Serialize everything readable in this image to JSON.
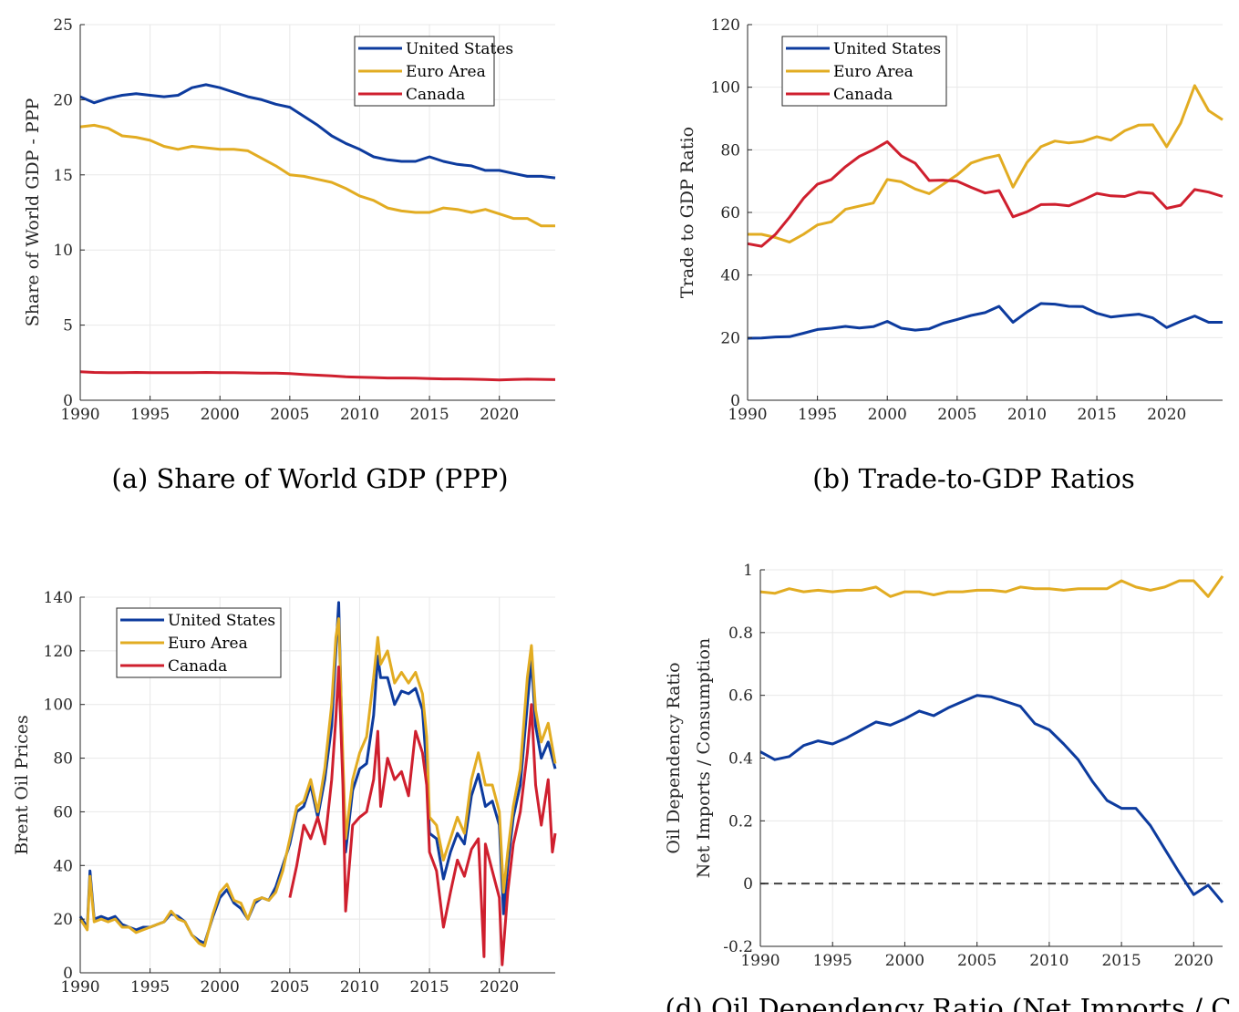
{
  "colors": {
    "us": "#0d3b9e",
    "ea": "#e2ac22",
    "ca": "#cf1f2e",
    "grid": "#e8e8e8",
    "axis": "#262626"
  },
  "chart_data": [
    {
      "id": "a",
      "type": "line",
      "caption": "(a) Share of World GDP (PPP)",
      "xlabel": "",
      "ylabel": "Share of World GDP - PPP",
      "xlim": [
        1990,
        2024
      ],
      "ylim": [
        0,
        25
      ],
      "xticks": [
        "1990",
        "1995",
        "2000",
        "2005",
        "2010",
        "2015",
        "2020"
      ],
      "yticks": [
        "0",
        "5",
        "10",
        "15",
        "20",
        "25"
      ],
      "legend": "top-right",
      "grid": true,
      "x": [
        1990,
        1991,
        1992,
        1993,
        1994,
        1995,
        1996,
        1997,
        1998,
        1999,
        2000,
        2001,
        2002,
        2003,
        2004,
        2005,
        2006,
        2007,
        2008,
        2009,
        2010,
        2011,
        2012,
        2013,
        2014,
        2015,
        2016,
        2017,
        2018,
        2019,
        2020,
        2021,
        2022,
        2023,
        2024
      ],
      "series": [
        {
          "name": "United States",
          "color": "us",
          "values": [
            20.2,
            19.8,
            20.1,
            20.3,
            20.4,
            20.3,
            20.2,
            20.3,
            20.8,
            21.0,
            20.8,
            20.5,
            20.2,
            20.0,
            19.7,
            19.5,
            18.9,
            18.3,
            17.6,
            17.1,
            16.7,
            16.2,
            16.0,
            15.9,
            15.9,
            16.2,
            15.9,
            15.7,
            15.6,
            15.3,
            15.3,
            15.1,
            14.9,
            14.9,
            14.8
          ]
        },
        {
          "name": "Euro Area",
          "color": "ea",
          "values": [
            18.2,
            18.3,
            18.1,
            17.6,
            17.5,
            17.3,
            16.9,
            16.7,
            16.9,
            16.8,
            16.7,
            16.7,
            16.6,
            16.1,
            15.6,
            15.0,
            14.9,
            14.7,
            14.5,
            14.1,
            13.6,
            13.3,
            12.8,
            12.6,
            12.5,
            12.5,
            12.8,
            12.7,
            12.5,
            12.7,
            12.4,
            12.1,
            12.1,
            11.6,
            11.6
          ]
        },
        {
          "name": "Canada",
          "color": "ca",
          "values": [
            1.9,
            1.85,
            1.84,
            1.84,
            1.85,
            1.84,
            1.83,
            1.83,
            1.84,
            1.85,
            1.84,
            1.83,
            1.82,
            1.81,
            1.8,
            1.78,
            1.72,
            1.67,
            1.62,
            1.56,
            1.53,
            1.51,
            1.48,
            1.48,
            1.47,
            1.44,
            1.42,
            1.42,
            1.4,
            1.38,
            1.35,
            1.38,
            1.4,
            1.39,
            1.37
          ]
        }
      ]
    },
    {
      "id": "b",
      "type": "line",
      "caption": "(b) Trade-to-GDP Ratios",
      "xlabel": "",
      "ylabel": "Trade to GDP Ratio",
      "xlim": [
        1990,
        2024
      ],
      "ylim": [
        0,
        120
      ],
      "xticks": [
        "1990",
        "1995",
        "2000",
        "2005",
        "2010",
        "2015",
        "2020"
      ],
      "yticks": [
        "0",
        "20",
        "40",
        "60",
        "80",
        "100",
        "120"
      ],
      "legend": "top-left",
      "grid": true,
      "x": [
        1990,
        1991,
        1992,
        1993,
        1994,
        1995,
        1996,
        1997,
        1998,
        1999,
        2000,
        2001,
        2002,
        2003,
        2004,
        2005,
        2006,
        2007,
        2008,
        2009,
        2010,
        2011,
        2012,
        2013,
        2014,
        2015,
        2016,
        2017,
        2018,
        2019,
        2020,
        2021,
        2022,
        2023,
        2024
      ],
      "series": [
        {
          "name": "United States",
          "color": "us",
          "values": [
            19.8,
            19.9,
            20.2,
            20.3,
            21.4,
            22.6,
            23.0,
            23.6,
            23.1,
            23.5,
            25.2,
            23.0,
            22.4,
            22.8,
            24.6,
            25.8,
            27.1,
            28.0,
            30.0,
            24.9,
            28.2,
            30.9,
            30.7,
            30.0,
            29.9,
            27.8,
            26.6,
            27.1,
            27.5,
            26.3,
            23.2,
            25.2,
            26.9,
            24.9,
            24.9
          ]
        },
        {
          "name": "Euro Area",
          "color": "ea",
          "values": [
            53,
            53,
            52,
            50.5,
            53,
            56,
            57,
            61,
            62,
            63,
            70.5,
            69.8,
            67.5,
            66,
            69,
            72,
            75.8,
            77.3,
            78.3,
            68.1,
            76,
            81,
            82.8,
            82.2,
            82.7,
            84.2,
            83.1,
            86.1,
            87.9,
            88,
            81,
            88.5,
            100.5,
            92.5,
            89.6
          ]
        },
        {
          "name": "Canada",
          "color": "ca",
          "values": [
            50,
            49.2,
            53,
            58.5,
            64.5,
            69,
            70.5,
            74.6,
            77.9,
            80,
            82.6,
            78.1,
            75.7,
            70.2,
            70.3,
            70,
            68,
            66.2,
            67,
            58.6,
            60.2,
            62.5,
            62.6,
            62.1,
            64,
            66.1,
            65.3,
            65.1,
            66.5,
            66.1,
            61.3,
            62.3,
            67.3,
            66.5,
            65.1
          ]
        }
      ]
    },
    {
      "id": "c",
      "type": "line",
      "caption": "",
      "xlabel": "",
      "ylabel": "Brent Oil Prices",
      "xlim": [
        1990,
        2024
      ],
      "ylim": [
        0,
        140
      ],
      "xticks": [
        "1990",
        "1995",
        "2000",
        "2005",
        "2010",
        "2015",
        "2020"
      ],
      "yticks": [
        "0",
        "20",
        "40",
        "60",
        "80",
        "100",
        "120",
        "140"
      ],
      "legend": "top-left",
      "grid": true,
      "series": [
        {
          "name": "United States",
          "color": "us",
          "x": [
            1990,
            1990.5,
            1990.7,
            1991,
            1991.5,
            1992,
            1992.5,
            1993,
            1993.5,
            1994,
            1994.5,
            1995,
            1995.5,
            1996,
            1996.5,
            1997,
            1997.5,
            1998,
            1998.5,
            1998.9,
            1999.5,
            2000,
            2000.5,
            2001,
            2001.5,
            2002,
            2002.5,
            2003,
            2003.5,
            2004,
            2004.5,
            2005,
            2005.5,
            2006,
            2006.5,
            2007,
            2007.5,
            2008,
            2008.3,
            2008.5,
            2008.8,
            2009,
            2009.5,
            2010,
            2010.5,
            2011,
            2011.3,
            2011.5,
            2012,
            2012.5,
            2013,
            2013.5,
            2014,
            2014.5,
            2014.8,
            2015,
            2015.5,
            2016,
            2016.5,
            2017,
            2017.5,
            2018,
            2018.5,
            2019,
            2019.5,
            2020,
            2020.3,
            2020.6,
            2021,
            2021.5,
            2022,
            2022.3,
            2022.6,
            2023,
            2023.5,
            2024
          ],
          "values": [
            21,
            17,
            38,
            20,
            21,
            20,
            21,
            18,
            17,
            16,
            17,
            17,
            18,
            19,
            22,
            21,
            19,
            14,
            12,
            11,
            21,
            28,
            31,
            26,
            24,
            20,
            26,
            28,
            27,
            32,
            40,
            48,
            60,
            62,
            70,
            58,
            72,
            92,
            120,
            138,
            75,
            45,
            68,
            76,
            78,
            96,
            118,
            110,
            110,
            100,
            105,
            104,
            106,
            98,
            76,
            52,
            50,
            35,
            45,
            52,
            48,
            66,
            74,
            62,
            64,
            55,
            22,
            40,
            58,
            70,
            100,
            117,
            92,
            80,
            86,
            76
          ]
        },
        {
          "name": "Euro Area",
          "color": "ea",
          "x": [
            1990,
            1990.5,
            1990.7,
            1991,
            1991.5,
            1992,
            1992.5,
            1993,
            1993.5,
            1994,
            1994.5,
            1995,
            1995.5,
            1996,
            1996.5,
            1997,
            1997.5,
            1998,
            1998.5,
            1998.9,
            1999.5,
            2000,
            2000.5,
            2001,
            2001.5,
            2002,
            2002.5,
            2003,
            2003.5,
            2004,
            2004.5,
            2005,
            2005.5,
            2006,
            2006.5,
            2007,
            2007.5,
            2008,
            2008.3,
            2008.5,
            2008.8,
            2009,
            2009.5,
            2010,
            2010.5,
            2011,
            2011.3,
            2011.5,
            2012,
            2012.5,
            2013,
            2013.5,
            2014,
            2014.5,
            2014.8,
            2015,
            2015.5,
            2016,
            2016.5,
            2017,
            2017.5,
            2018,
            2018.5,
            2019,
            2019.5,
            2020,
            2020.3,
            2020.6,
            2021,
            2021.5,
            2022,
            2022.3,
            2022.6,
            2023,
            2023.5,
            2024
          ],
          "values": [
            20,
            16,
            36,
            19,
            20,
            19,
            20,
            17,
            17,
            15,
            16,
            17,
            18,
            19,
            23,
            20,
            19,
            14,
            11,
            10,
            22,
            30,
            33,
            27,
            26,
            20,
            27,
            28,
            27,
            30,
            38,
            50,
            62,
            64,
            72,
            60,
            76,
            100,
            125,
            132,
            80,
            50,
            72,
            82,
            88,
            110,
            125,
            115,
            120,
            108,
            112,
            108,
            112,
            104,
            88,
            58,
            55,
            42,
            50,
            58,
            52,
            72,
            82,
            70,
            70,
            60,
            30,
            45,
            62,
            76,
            110,
            122,
            98,
            86,
            93,
            78
          ]
        },
        {
          "name": "Canada",
          "color": "ca",
          "x": [
            2005,
            2005.5,
            2006,
            2006.5,
            2007,
            2007.5,
            2008,
            2008.3,
            2008.5,
            2008.8,
            2009,
            2009.5,
            2010,
            2010.5,
            2011,
            2011.3,
            2011.5,
            2012,
            2012.5,
            2013,
            2013.5,
            2014,
            2014.5,
            2014.8,
            2015,
            2015.5,
            2016,
            2016.5,
            2017,
            2017.5,
            2018,
            2018.5,
            2018.9,
            2019,
            2019.5,
            2020,
            2020.2,
            2020.6,
            2021,
            2021.5,
            2022,
            2022.3,
            2022.6,
            2023,
            2023.5,
            2023.8,
            2024
          ],
          "values": [
            28,
            40,
            55,
            50,
            58,
            48,
            72,
            95,
            114,
            70,
            23,
            55,
            58,
            60,
            72,
            90,
            62,
            80,
            72,
            75,
            66,
            90,
            82,
            70,
            45,
            38,
            17,
            30,
            42,
            36,
            46,
            50,
            6,
            48,
            38,
            28,
            3,
            30,
            48,
            60,
            82,
            100,
            70,
            55,
            72,
            45,
            52
          ]
        }
      ]
    },
    {
      "id": "d",
      "type": "line",
      "caption": "(d) Oil Dependency Ratio (Net Imports / C",
      "xlabel": "",
      "ylabel": [
        "Oil Dependency Ratio",
        "Net Imports / Consumption"
      ],
      "xlim": [
        1990,
        2022
      ],
      "ylim": [
        -0.2,
        1
      ],
      "xticks": [
        "1990",
        "1995",
        "2000",
        "2005",
        "2010",
        "2015",
        "2020"
      ],
      "yticks": [
        "-0.2",
        "0",
        "0.2",
        "0.4",
        "0.6",
        "0.8",
        "1"
      ],
      "legend": "none",
      "grid": true,
      "reference_line": {
        "y": 0,
        "style": "dashed"
      },
      "x": [
        1990,
        1991,
        1992,
        1993,
        1994,
        1995,
        1996,
        1997,
        1998,
        1999,
        2000,
        2001,
        2002,
        2003,
        2004,
        2005,
        2006,
        2007,
        2008,
        2009,
        2010,
        2011,
        2012,
        2013,
        2014,
        2015,
        2016,
        2017,
        2018,
        2019,
        2020,
        2021,
        2022
      ],
      "series": [
        {
          "color": "us",
          "values": [
            0.42,
            0.395,
            0.405,
            0.44,
            0.455,
            0.445,
            0.465,
            0.49,
            0.515,
            0.505,
            0.525,
            0.55,
            0.535,
            0.56,
            0.58,
            0.6,
            0.595,
            0.58,
            0.565,
            0.51,
            0.49,
            0.445,
            0.395,
            0.325,
            0.265,
            0.24,
            0.24,
            0.185,
            0.11,
            0.035,
            -0.035,
            -0.005,
            -0.06
          ]
        },
        {
          "color": "ea",
          "values": [
            0.93,
            0.925,
            0.94,
            0.93,
            0.935,
            0.93,
            0.935,
            0.935,
            0.945,
            0.915,
            0.93,
            0.93,
            0.92,
            0.93,
            0.93,
            0.935,
            0.935,
            0.93,
            0.945,
            0.94,
            0.94,
            0.935,
            0.94,
            0.94,
            0.94,
            0.965,
            0.945,
            0.935,
            0.945,
            0.965,
            0.965,
            0.915,
            0.98
          ]
        }
      ]
    }
  ]
}
